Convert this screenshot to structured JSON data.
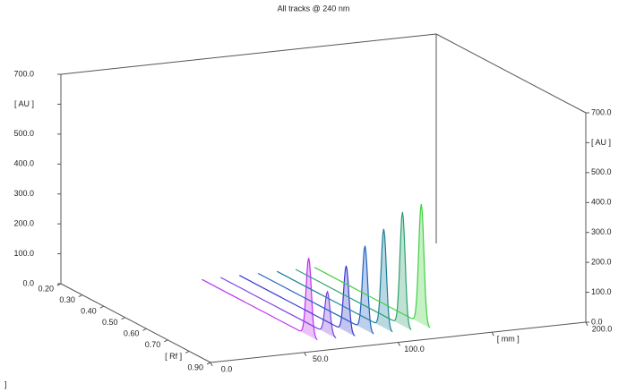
{
  "chart_data": {
    "type": "hptlc3d",
    "title": "All tracks @ 240 nm",
    "footnote": "]",
    "zlim": [
      0,
      700
    ],
    "zticks": [
      {
        "value": 0,
        "label": "0.0"
      },
      {
        "value": 100,
        "label": "100.0"
      },
      {
        "value": 200,
        "label": "200.0"
      },
      {
        "value": 300,
        "label": "300.0"
      },
      {
        "value": 400,
        "label": "400.0"
      },
      {
        "value": 500,
        "label": "500.0"
      },
      {
        "value": 600,
        "label": "[ AU ]"
      },
      {
        "value": 700,
        "label": "700.0"
      }
    ],
    "rflim": [
      0.2,
      0.9
    ],
    "rfticks": [
      {
        "value": 0.2,
        "label": "0.20"
      },
      {
        "value": 0.3,
        "label": "0.30"
      },
      {
        "value": 0.4,
        "label": "0.40"
      },
      {
        "value": 0.5,
        "label": "0.50"
      },
      {
        "value": 0.6,
        "label": "0.60"
      },
      {
        "value": 0.7,
        "label": "0.70"
      },
      {
        "value": 0.8,
        "label": "[ Rf ]"
      },
      {
        "value": 0.9,
        "label": "0.90"
      }
    ],
    "mmlim": [
      0,
      200
    ],
    "mmticks": [
      {
        "value": 0,
        "label": "0.0"
      },
      {
        "value": 50,
        "label": "50.0"
      },
      {
        "value": 100,
        "label": "100.0"
      },
      {
        "value": 150,
        "label": "[ mm ]"
      },
      {
        "value": 200,
        "label": "200.0"
      }
    ],
    "x": [
      66,
      76,
      86,
      96,
      106,
      116,
      126
    ],
    "peak_rf": [
      0.78,
      0.78,
      0.78,
      0.78,
      0.78,
      0.78,
      0.78
    ],
    "values": [
      260,
      140,
      220,
      280,
      330,
      380,
      400
    ],
    "colors": [
      "#c030f0",
      "#7a40e0",
      "#3a3ad0",
      "#2060c0",
      "#1a7f9a",
      "#2aa070",
      "#40d040"
    ]
  }
}
